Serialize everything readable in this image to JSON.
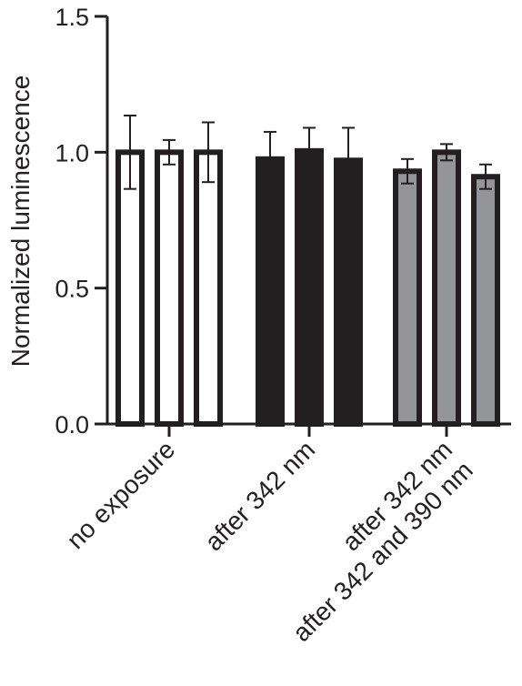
{
  "chart_data": {
    "type": "bar",
    "ylabel": "Normalized luminescence",
    "xlabel": "",
    "ylim": [
      0,
      1.5
    ],
    "yticks": [
      "0.0",
      "0.5",
      "1.0",
      "1.5"
    ],
    "grid": false,
    "legend": "none",
    "categories": [
      "no exposure",
      "after 342 nm",
      "after 342 nm\nafter 342 and 390 nm"
    ],
    "category_lines": [
      [
        "no exposure"
      ],
      [
        "after 342 nm"
      ],
      [
        "after 342 nm",
        "after 342 and 390 nm"
      ]
    ],
    "groups": [
      {
        "fill": "#ffffff",
        "values": [
          1.0,
          1.0,
          1.0
        ],
        "errors": [
          0.135,
          0.045,
          0.11
        ]
      },
      {
        "fill": "#231f20",
        "values": [
          0.975,
          1.005,
          0.97
        ],
        "errors": [
          0.1,
          0.085,
          0.12
        ]
      },
      {
        "fill": "#939598",
        "values": [
          0.93,
          1.0,
          0.91
        ],
        "errors": [
          0.045,
          0.03,
          0.045
        ]
      }
    ]
  },
  "colors": {
    "axis": "#231f20",
    "bar_outline": "#231f20",
    "white_fill": "#ffffff",
    "black_fill": "#231f20",
    "gray_fill": "#939598"
  }
}
